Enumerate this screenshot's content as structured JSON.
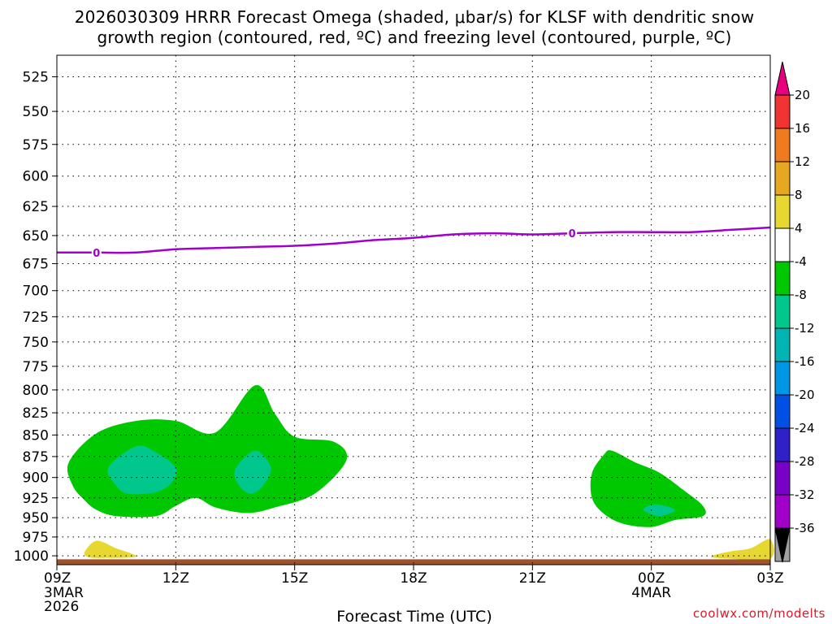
{
  "chart_data": {
    "type": "time-height contour",
    "title_line1": "2026030309 HRRR Forecast Omega (shaded, μbar/s) for KLSF with dendritic snow",
    "title_line2": "growth region (contoured, red, ºC) and freezing level (contoured, purple, ºC)",
    "xlabel": "Forecast Time (UTC)",
    "credit": "coolwx.com/modelts",
    "x_ticks": [
      {
        "hour": 0,
        "label": "09Z",
        "sub1": "3MAR",
        "sub2": "2026"
      },
      {
        "hour": 3,
        "label": "12Z",
        "sub1": "",
        "sub2": ""
      },
      {
        "hour": 6,
        "label": "15Z",
        "sub1": "",
        "sub2": ""
      },
      {
        "hour": 9,
        "label": "18Z",
        "sub1": "",
        "sub2": ""
      },
      {
        "hour": 12,
        "label": "21Z",
        "sub1": "",
        "sub2": ""
      },
      {
        "hour": 15,
        "label": "00Z",
        "sub1": "4MAR",
        "sub2": ""
      },
      {
        "hour": 18,
        "label": "03Z",
        "sub1": "",
        "sub2": ""
      }
    ],
    "xlim_hours": [
      0,
      18
    ],
    "y_ticks_mb": [
      "525",
      "550",
      "575",
      "600",
      "625",
      "650",
      "675",
      "700",
      "725",
      "750",
      "775",
      "800",
      "825",
      "850",
      "875",
      "900",
      "925",
      "950",
      "975",
      "1000"
    ],
    "ylim_mb": [
      510,
      1012
    ],
    "y_scale": "log-pressure",
    "grid": "dotted",
    "colorbar": {
      "ticks": [
        "20",
        "16",
        "12",
        "8",
        "4",
        "-4",
        "-8",
        "-12",
        "-16",
        "-20",
        "-24",
        "-28",
        "-32",
        "-36"
      ],
      "colors": [
        "#e6007e",
        "#f03333",
        "#f07a1e",
        "#e6a820",
        "#e6d830",
        "#ffffff",
        "#00c800",
        "#00c88c",
        "#00b4b4",
        "#0096e6",
        "#0050e6",
        "#3020c8",
        "#7800c8",
        "#a000c8",
        "#a0a0a0",
        "#000000"
      ]
    },
    "freezing_level": {
      "label": "0",
      "color": "#a000c8",
      "hours": [
        0,
        1,
        2,
        3,
        4,
        5,
        6,
        7,
        8,
        9,
        10,
        11,
        12,
        13,
        14,
        15,
        16,
        17,
        18
      ],
      "pressure_mb": [
        665,
        665,
        665,
        662,
        661,
        660,
        659,
        657,
        654,
        652,
        649,
        648,
        649,
        648,
        647,
        647,
        647,
        645,
        643
      ]
    },
    "omega_regions": [
      {
        "level": "-4 to -8",
        "color": "#00c800",
        "name": "green-region-1",
        "points": [
          [
            0.3,
            882
          ],
          [
            1.0,
            848
          ],
          [
            2.0,
            834
          ],
          [
            3.0,
            834
          ],
          [
            4.0,
            847
          ],
          [
            5.0,
            795
          ],
          [
            5.5,
            826
          ],
          [
            6.0,
            852
          ],
          [
            7.0,
            858
          ],
          [
            7.3,
            880
          ],
          [
            6.5,
            920
          ],
          [
            5.5,
            937
          ],
          [
            4.8,
            944
          ],
          [
            4.0,
            937
          ],
          [
            3.5,
            925
          ],
          [
            3.0,
            935
          ],
          [
            2.5,
            948
          ],
          [
            1.5,
            948
          ],
          [
            1.0,
            940
          ],
          [
            0.7,
            928
          ],
          [
            0.4,
            910
          ]
        ]
      },
      {
        "level": "-4 to -8",
        "color": "#00c800",
        "name": "green-region-2",
        "points": [
          [
            13.5,
            895
          ],
          [
            13.8,
            873
          ],
          [
            14.0,
            868
          ],
          [
            14.6,
            882
          ],
          [
            15.2,
            894
          ],
          [
            15.8,
            915
          ],
          [
            16.3,
            935
          ],
          [
            16.3,
            948
          ],
          [
            15.6,
            953
          ],
          [
            15.0,
            962
          ],
          [
            14.3,
            958
          ],
          [
            13.8,
            945
          ],
          [
            13.5,
            925
          ]
        ]
      },
      {
        "level": "-8 to -12",
        "color": "#00c88c",
        "name": "teal-region-1",
        "points": [
          [
            1.3,
            888
          ],
          [
            2.0,
            863
          ],
          [
            2.5,
            870
          ],
          [
            3.0,
            888
          ],
          [
            2.9,
            906
          ],
          [
            2.5,
            918
          ],
          [
            1.8,
            920
          ],
          [
            1.5,
            910
          ]
        ]
      },
      {
        "level": "-8 to -12",
        "color": "#00c88c",
        "name": "teal-region-2",
        "points": [
          [
            4.5,
            890
          ],
          [
            5.0,
            868
          ],
          [
            5.4,
            888
          ],
          [
            5.2,
            910
          ],
          [
            4.9,
            920
          ],
          [
            4.6,
            910
          ]
        ]
      },
      {
        "level": "-8 to -12",
        "color": "#00c88c",
        "name": "teal-region-3",
        "points": [
          [
            14.8,
            940
          ],
          [
            15.1,
            933
          ],
          [
            15.6,
            940
          ],
          [
            15.2,
            948
          ]
        ]
      },
      {
        "level": "4 to 8",
        "color": "#e6d830",
        "name": "yellow-region-1",
        "points": [
          [
            0.7,
            995
          ],
          [
            1.0,
            980
          ],
          [
            1.5,
            990
          ],
          [
            2.0,
            1001
          ],
          [
            1.2,
            1003
          ],
          [
            0.8,
            1002
          ]
        ]
      },
      {
        "level": "4 to 8",
        "color": "#e6d830",
        "name": "yellow-region-2",
        "points": [
          [
            16.5,
            1001
          ],
          [
            17.0,
            994
          ],
          [
            17.5,
            990
          ],
          [
            18.0,
            978
          ],
          [
            18.0,
            1004
          ],
          [
            17.0,
            1004
          ]
        ]
      }
    ],
    "ground": {
      "color": "#a0522d",
      "pressure_mb": 1008
    }
  }
}
